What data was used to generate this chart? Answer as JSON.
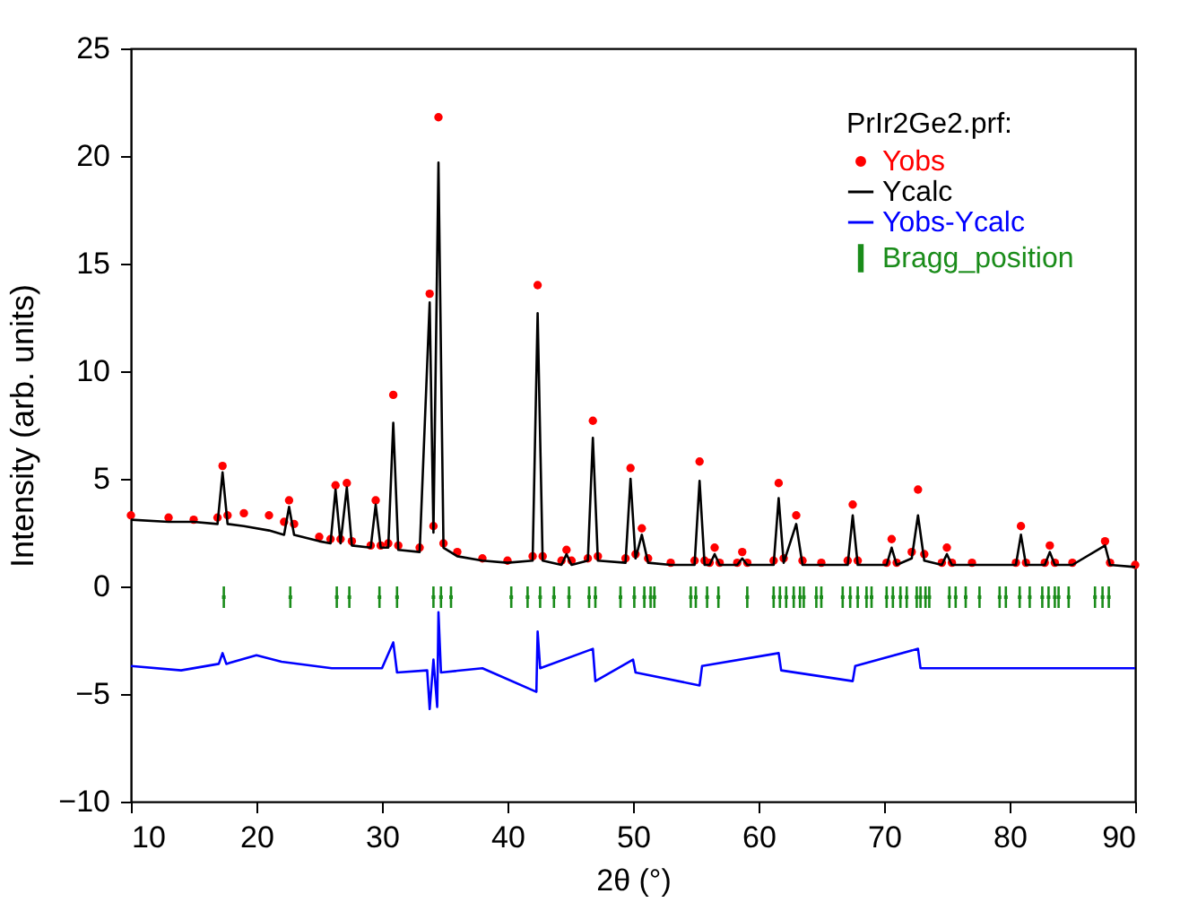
{
  "chart_data": {
    "type": "line",
    "xlabel": "2θ (°)",
    "ylabel": "Intensity (arb. units)",
    "legend_title": "PrIr2Ge2.prf:",
    "legend": "top right",
    "grid": false,
    "xlim": [
      10,
      90
    ],
    "xticks": [
      10,
      20,
      30,
      40,
      50,
      60,
      70,
      80,
      90
    ],
    "ylim": [
      -10,
      25
    ],
    "yticks": [
      -10,
      -5,
      0,
      5,
      10,
      15,
      20,
      25
    ],
    "x": [
      10,
      13,
      15,
      16.9,
      17.3,
      17.7,
      19,
      21,
      22.2,
      22.6,
      23.0,
      25,
      25.9,
      26.3,
      26.7,
      27.2,
      27.6,
      29.1,
      29.5,
      29.9,
      30.5,
      30.9,
      31.3,
      33.0,
      33.8,
      34.1,
      34.5,
      34.9,
      36,
      38,
      40,
      42.0,
      42.4,
      42.8,
      44.3,
      44.7,
      45.1,
      46.4,
      46.8,
      47.2,
      49.4,
      49.8,
      50.2,
      50.7,
      51.2,
      53,
      54.9,
      55.3,
      55.7,
      56.1,
      56.5,
      56.9,
      58.3,
      58.7,
      59.1,
      61.2,
      61.6,
      62.0,
      63.0,
      63.5,
      65,
      67.1,
      67.5,
      67.9,
      70.2,
      70.6,
      71.0,
      72.2,
      72.7,
      73.2,
      74.6,
      75.0,
      75.4,
      77,
      80.5,
      80.9,
      81.3,
      82.8,
      83.2,
      83.6,
      85,
      87.6,
      88,
      90
    ],
    "series": [
      {
        "name": "Yobs",
        "type": "scatter",
        "marker": "circle",
        "color": "#ff0000",
        "values": [
          3.3,
          3.2,
          3.1,
          3.2,
          5.6,
          3.3,
          3.4,
          3.3,
          3.0,
          4.0,
          2.9,
          2.3,
          2.2,
          4.7,
          2.2,
          4.8,
          2.1,
          1.9,
          4.0,
          1.9,
          2.0,
          8.9,
          1.9,
          1.8,
          13.6,
          2.8,
          21.8,
          2.0,
          1.6,
          1.3,
          1.2,
          1.4,
          14.0,
          1.4,
          1.2,
          1.7,
          1.2,
          1.3,
          7.7,
          1.4,
          1.3,
          5.5,
          1.5,
          2.7,
          1.3,
          1.1,
          1.2,
          5.8,
          1.2,
          1.1,
          1.8,
          1.1,
          1.1,
          1.6,
          1.1,
          1.2,
          4.8,
          1.3,
          3.3,
          1.2,
          1.1,
          1.2,
          3.8,
          1.2,
          1.1,
          2.2,
          1.1,
          1.6,
          4.5,
          1.5,
          1.1,
          1.8,
          1.1,
          1.1,
          1.1,
          2.8,
          1.1,
          1.1,
          1.9,
          1.1,
          1.1,
          2.1,
          1.1,
          1.0
        ]
      },
      {
        "name": "Ycalc",
        "color": "#000000",
        "values": [
          3.1,
          3.0,
          3.0,
          2.9,
          5.3,
          2.9,
          2.8,
          2.6,
          2.4,
          3.7,
          2.4,
          2.1,
          2.0,
          4.5,
          2.0,
          4.6,
          1.9,
          1.8,
          3.8,
          1.8,
          1.8,
          7.6,
          1.7,
          1.6,
          13.2,
          2.5,
          19.7,
          1.8,
          1.4,
          1.2,
          1.1,
          1.2,
          12.7,
          1.2,
          1.0,
          1.5,
          1.0,
          1.2,
          6.9,
          1.2,
          1.1,
          5.0,
          1.3,
          2.4,
          1.1,
          1.0,
          1.0,
          4.9,
          1.0,
          1.0,
          1.5,
          1.0,
          1.0,
          1.3,
          1.0,
          1.0,
          4.1,
          1.1,
          2.9,
          1.0,
          1.0,
          1.0,
          3.3,
          1.0,
          1.0,
          1.8,
          1.0,
          1.3,
          3.3,
          1.2,
          1.0,
          1.5,
          1.0,
          1.0,
          1.0,
          2.4,
          1.0,
          1.0,
          1.6,
          1.0,
          1.0,
          1.9,
          1.0,
          0.9
        ]
      },
      {
        "name": "Yobs-Ycalc",
        "type": "line",
        "color": "#0000ff",
        "x": [
          10,
          14,
          17,
          17.3,
          17.6,
          20,
          22,
          26,
          30,
          30.9,
          31.2,
          33.6,
          33.8,
          34.1,
          34.4,
          34.5,
          34.7,
          38,
          42.3,
          42.4,
          42.6,
          46.8,
          47,
          50,
          50.2,
          55.3,
          55.5,
          61.6,
          61.8,
          67.5,
          67.7,
          72.7,
          72.9,
          80,
          90
        ],
        "values": [
          -3.7,
          -3.9,
          -3.6,
          -3.1,
          -3.6,
          -3.2,
          -3.5,
          -3.8,
          -3.8,
          -2.6,
          -4.0,
          -3.9,
          -5.7,
          -3.4,
          -5.6,
          -1.2,
          -4.0,
          -3.8,
          -4.9,
          -2.1,
          -3.8,
          -2.9,
          -4.4,
          -3.4,
          -4.0,
          -4.6,
          -3.7,
          -3.1,
          -3.9,
          -4.4,
          -3.7,
          -2.9,
          -3.8,
          -3.8,
          -3.8
        ]
      },
      {
        "name": "Bragg_position",
        "type": "scatter",
        "marker": "square",
        "errors": [
          0.5,
          0.5,
          0.5,
          0.5,
          0.5,
          0.5,
          0.5,
          0.5,
          0.5,
          0.5,
          0.5,
          0.5,
          0.5,
          0.5,
          0.5,
          0.5,
          0.5,
          0.5,
          0.5,
          0.5,
          0.5,
          0.5,
          0.5,
          0.5,
          0.5,
          0.5,
          0.5,
          0.5,
          0.5,
          0.5,
          0.5,
          0.5,
          0.5,
          0.5,
          0.5,
          0.5,
          0.5,
          0.5,
          0.5,
          0.5,
          0.5,
          0.5,
          0.5,
          0.5,
          0.5,
          0.5,
          0.5,
          0.5,
          0.5,
          0.5,
          0.5,
          0.5,
          0.5,
          0.5,
          0.5,
          0.5,
          0.5,
          0.5,
          0.5,
          0.5,
          0.5,
          0.5,
          0.5
        ],
        "color": "#1a8c1a",
        "x": [
          17.4,
          22.7,
          26.4,
          27.4,
          29.8,
          31.2,
          34.1,
          34.7,
          35.5,
          40.3,
          41.6,
          42.6,
          43.7,
          44.9,
          46.5,
          47.0,
          49.0,
          50.1,
          50.9,
          51.4,
          51.7,
          54.6,
          55.0,
          55.9,
          56.8,
          59.1,
          61.2,
          61.7,
          62.2,
          62.8,
          63.3,
          63.6,
          64.6,
          65.0,
          66.7,
          67.3,
          67.9,
          68.6,
          69.0,
          70.2,
          70.7,
          71.3,
          71.8,
          72.6,
          72.9,
          73.3,
          73.6,
          75.2,
          75.7,
          76.5,
          77.6,
          79.2,
          79.7,
          80.8,
          81.6,
          82.6,
          83.1,
          83.6,
          83.9,
          84.7,
          86.8,
          87.4,
          87.9
        ],
        "values": [
          -0.5,
          -0.5,
          -0.5,
          -0.5,
          -0.5,
          -0.5,
          -0.5,
          -0.5,
          -0.5,
          -0.5,
          -0.5,
          -0.5,
          -0.5,
          -0.5,
          -0.5,
          -0.5,
          -0.5,
          -0.5,
          -0.5,
          -0.5,
          -0.5,
          -0.5,
          -0.5,
          -0.5,
          -0.5,
          -0.5,
          -0.5,
          -0.5,
          -0.5,
          -0.5,
          -0.5,
          -0.5,
          -0.5,
          -0.5,
          -0.5,
          -0.5,
          -0.5,
          -0.5,
          -0.5,
          -0.5,
          -0.5,
          -0.5,
          -0.5,
          -0.5,
          -0.5,
          -0.5,
          -0.5,
          -0.5,
          -0.5,
          -0.5,
          -0.5,
          -0.5,
          -0.5,
          -0.5,
          -0.5,
          -0.5,
          -0.5,
          -0.5,
          -0.5,
          -0.5,
          -0.5,
          -0.5,
          -0.5
        ]
      }
    ]
  }
}
